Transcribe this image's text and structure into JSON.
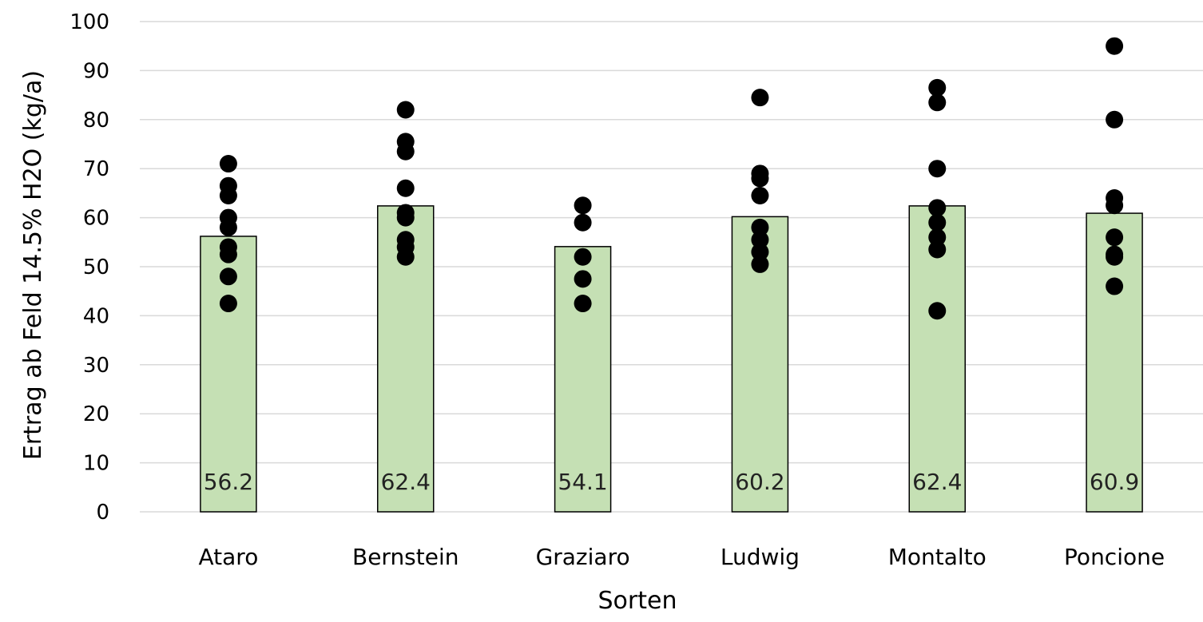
{
  "chart_data": {
    "type": "bar",
    "title": "",
    "xlabel": "Sorten",
    "ylabel": "Ertrag ab Feld 14.5% H2O (kg/a)",
    "ylim": [
      0,
      100
    ],
    "yticks": [
      0,
      10,
      20,
      30,
      40,
      50,
      60,
      70,
      80,
      90,
      100
    ],
    "grid": true,
    "legend": "none",
    "colors": {
      "bar_fill": "#c5e0b4",
      "bar_stroke": "#000000",
      "points": "#000000",
      "grid": "#d9d9d9"
    },
    "categories": [
      "Ataro",
      "Bernstein",
      "Graziaro",
      "Ludwig",
      "Montalto",
      "Poncione"
    ],
    "values": [
      56.2,
      62.4,
      54.1,
      60.2,
      62.4,
      60.9
    ],
    "data_labels": [
      "56.2",
      "62.4",
      "54.1",
      "60.2",
      "62.4",
      "60.9"
    ],
    "points": [
      [
        71,
        66.5,
        64.5,
        60,
        58,
        54,
        52.5,
        48,
        42.5
      ],
      [
        82,
        75.5,
        73.5,
        66,
        61,
        60,
        55.5,
        54,
        52
      ],
      [
        62.5,
        59,
        52,
        47.5,
        42.5
      ],
      [
        84.5,
        69,
        68,
        64.5,
        58,
        55.5,
        53,
        50.5
      ],
      [
        86.5,
        83.5,
        70,
        62,
        59,
        56,
        53.5,
        41
      ],
      [
        95,
        80,
        64,
        62.5,
        56,
        52.5,
        52,
        46
      ]
    ]
  }
}
